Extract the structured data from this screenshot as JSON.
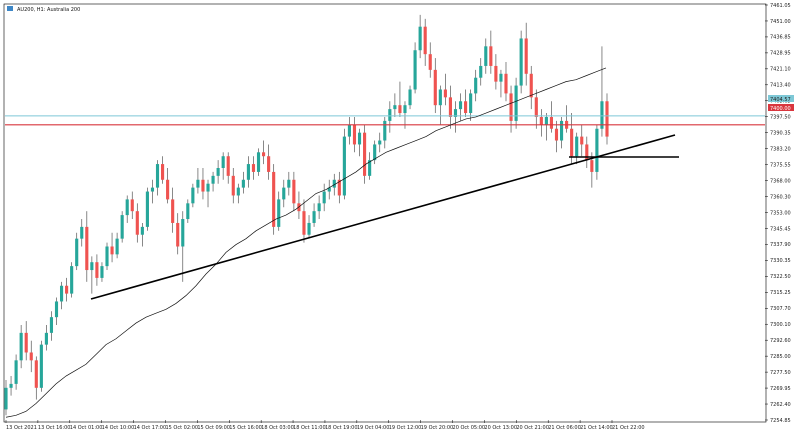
{
  "header": {
    "symbol_label": "AU200, H1:  Australia 200"
  },
  "colors": {
    "bull": "#26a69a",
    "bear": "#ef5350",
    "wick": "#555555",
    "cyan_line": "#7ec8d6",
    "red_line": "#d9363e",
    "trend": "#000000",
    "ma": "#111111",
    "grid_frame": "#000000"
  },
  "price_tags": {
    "current": "7404.57",
    "red_level": "7400.00"
  },
  "chart_data": {
    "type": "candlestick",
    "title": "",
    "ylim": [
      7249.6,
      7461.05
    ],
    "y_ticks": [
      "7461.05",
      "7451.00",
      "7436.85",
      "7428.95",
      "7421.10",
      "7413.40",
      "7405.65",
      "7397.50",
      "7390.35",
      "7383.20",
      "7375.55",
      "7368.00",
      "7360.30",
      "7353.00",
      "7345.45",
      "7337.90",
      "7330.35",
      "7322.50",
      "7315.25",
      "7307.70",
      "7300.10",
      "7292.60",
      "7285.00",
      "7277.50",
      "7269.95",
      "7262.40",
      "7254.85"
    ],
    "x_ticks": [
      "13 Oct 2021",
      "13 Oct 16:00",
      "14 Oct 01:00",
      "14 Oct 10:00",
      "14 Oct 17:00",
      "15 Oct 02:00",
      "15 Oct 09:00",
      "15 Oct 16:00",
      "18 Oct 03:00",
      "18 Oct 11:00",
      "18 Oct 19:00",
      "19 Oct 04:00",
      "19 Oct 12:00",
      "19 Oct 20:00",
      "20 Oct 05:00",
      "20 Oct 13:00",
      "20 Oct 21:00",
      "21 Oct 06:00",
      "21 Oct 14:00",
      "21 Oct 22:00"
    ],
    "candles": [
      [
        7255,
        7270,
        7252,
        7266
      ],
      [
        7266,
        7272,
        7262,
        7268
      ],
      [
        7268,
        7283,
        7265,
        7280
      ],
      [
        7280,
        7298,
        7276,
        7294
      ],
      [
        7294,
        7300,
        7280,
        7284
      ],
      [
        7284,
        7290,
        7274,
        7280
      ],
      [
        7280,
        7282,
        7260,
        7266
      ],
      [
        7266,
        7290,
        7264,
        7288
      ],
      [
        7288,
        7298,
        7285,
        7294
      ],
      [
        7294,
        7305,
        7290,
        7302
      ],
      [
        7302,
        7312,
        7298,
        7310
      ],
      [
        7310,
        7320,
        7306,
        7318
      ],
      [
        7318,
        7322,
        7310,
        7314
      ],
      [
        7314,
        7330,
        7312,
        7328
      ],
      [
        7328,
        7345,
        7326,
        7342
      ],
      [
        7342,
        7352,
        7338,
        7348
      ],
      [
        7348,
        7356,
        7320,
        7326
      ],
      [
        7326,
        7333,
        7314,
        7330
      ],
      [
        7330,
        7334,
        7318,
        7322
      ],
      [
        7322,
        7330,
        7320,
        7328
      ],
      [
        7328,
        7340,
        7326,
        7338
      ],
      [
        7338,
        7345,
        7330,
        7334
      ],
      [
        7334,
        7345,
        7332,
        7342
      ],
      [
        7342,
        7356,
        7340,
        7354
      ],
      [
        7354,
        7364,
        7350,
        7362
      ],
      [
        7362,
        7366,
        7352,
        7356
      ],
      [
        7356,
        7360,
        7340,
        7344
      ],
      [
        7344,
        7350,
        7338,
        7348
      ],
      [
        7348,
        7368,
        7346,
        7366
      ],
      [
        7366,
        7372,
        7360,
        7368
      ],
      [
        7368,
        7382,
        7364,
        7380
      ],
      [
        7380,
        7384,
        7370,
        7372
      ],
      [
        7372,
        7378,
        7360,
        7362
      ],
      [
        7362,
        7368,
        7345,
        7350
      ],
      [
        7350,
        7355,
        7334,
        7338
      ],
      [
        7338,
        7356,
        7320,
        7352
      ],
      [
        7352,
        7362,
        7350,
        7360
      ],
      [
        7360,
        7370,
        7358,
        7368
      ],
      [
        7368,
        7378,
        7365,
        7372
      ],
      [
        7372,
        7378,
        7362,
        7366
      ],
      [
        7366,
        7372,
        7358,
        7370
      ],
      [
        7370,
        7376,
        7366,
        7374
      ],
      [
        7374,
        7382,
        7370,
        7378
      ],
      [
        7378,
        7386,
        7372,
        7384
      ],
      [
        7384,
        7386,
        7370,
        7374
      ],
      [
        7374,
        7378,
        7360,
        7364
      ],
      [
        7364,
        7370,
        7360,
        7368
      ],
      [
        7368,
        7376,
        7365,
        7372
      ],
      [
        7372,
        7384,
        7368,
        7380
      ],
      [
        7380,
        7384,
        7372,
        7376
      ],
      [
        7376,
        7388,
        7374,
        7386
      ],
      [
        7386,
        7392,
        7380,
        7384
      ],
      [
        7384,
        7390,
        7372,
        7376
      ],
      [
        7376,
        7380,
        7344,
        7348
      ],
      [
        7348,
        7366,
        7346,
        7362
      ],
      [
        7362,
        7372,
        7358,
        7368
      ],
      [
        7368,
        7376,
        7364,
        7372
      ],
      [
        7372,
        7376,
        7356,
        7360
      ],
      [
        7360,
        7366,
        7352,
        7356
      ],
      [
        7356,
        7362,
        7340,
        7344
      ],
      [
        7344,
        7354,
        7342,
        7350
      ],
      [
        7350,
        7360,
        7348,
        7356
      ],
      [
        7356,
        7364,
        7352,
        7360
      ],
      [
        7360,
        7370,
        7356,
        7366
      ],
      [
        7366,
        7372,
        7362,
        7368
      ],
      [
        7368,
        7375,
        7364,
        7372
      ],
      [
        7372,
        7376,
        7360,
        7364
      ],
      [
        7364,
        7398,
        7362,
        7394
      ],
      [
        7394,
        7404,
        7390,
        7400
      ],
      [
        7400,
        7404,
        7386,
        7390
      ],
      [
        7390,
        7398,
        7384,
        7396
      ],
      [
        7396,
        7400,
        7370,
        7374
      ],
      [
        7374,
        7386,
        7372,
        7382
      ],
      [
        7382,
        7392,
        7380,
        7390
      ],
      [
        7390,
        7396,
        7386,
        7392
      ],
      [
        7392,
        7404,
        7388,
        7402
      ],
      [
        7402,
        7412,
        7396,
        7408
      ],
      [
        7408,
        7416,
        7404,
        7410
      ],
      [
        7410,
        7422,
        7404,
        7406
      ],
      [
        7406,
        7412,
        7398,
        7410
      ],
      [
        7410,
        7420,
        7408,
        7418
      ],
      [
        7418,
        7442,
        7416,
        7438
      ],
      [
        7438,
        7456,
        7434,
        7450
      ],
      [
        7450,
        7454,
        7430,
        7436
      ],
      [
        7436,
        7442,
        7424,
        7428
      ],
      [
        7428,
        7434,
        7406,
        7410
      ],
      [
        7410,
        7420,
        7400,
        7418
      ],
      [
        7418,
        7426,
        7410,
        7414
      ],
      [
        7414,
        7420,
        7398,
        7404
      ],
      [
        7404,
        7412,
        7396,
        7408
      ],
      [
        7408,
        7416,
        7402,
        7412
      ],
      [
        7412,
        7418,
        7404,
        7406
      ],
      [
        7406,
        7418,
        7402,
        7416
      ],
      [
        7416,
        7428,
        7412,
        7424
      ],
      [
        7424,
        7434,
        7420,
        7430
      ],
      [
        7430,
        7444,
        7426,
        7440
      ],
      [
        7440,
        7448,
        7426,
        7430
      ],
      [
        7430,
        7436,
        7418,
        7422
      ],
      [
        7422,
        7428,
        7414,
        7426
      ],
      [
        7426,
        7432,
        7412,
        7416
      ],
      [
        7416,
        7420,
        7396,
        7402
      ],
      [
        7402,
        7424,
        7398,
        7420
      ],
      [
        7420,
        7448,
        7416,
        7444
      ],
      [
        7444,
        7452,
        7420,
        7426
      ],
      [
        7426,
        7430,
        7408,
        7414
      ],
      [
        7414,
        7418,
        7398,
        7404
      ],
      [
        7404,
        7408,
        7394,
        7400
      ],
      [
        7400,
        7406,
        7392,
        7404
      ],
      [
        7404,
        7412,
        7396,
        7398
      ],
      [
        7398,
        7402,
        7386,
        7392
      ],
      [
        7392,
        7404,
        7388,
        7402
      ],
      [
        7402,
        7410,
        7396,
        7398
      ],
      [
        7398,
        7406,
        7380,
        7384
      ],
      [
        7384,
        7396,
        7380,
        7394
      ],
      [
        7394,
        7400,
        7384,
        7390
      ],
      [
        7390,
        7394,
        7378,
        7382
      ],
      [
        7382,
        7386,
        7368,
        7376
      ],
      [
        7376,
        7400,
        7372,
        7398
      ],
      [
        7398,
        7440,
        7394,
        7412
      ],
      [
        7412,
        7416,
        7390,
        7394
      ]
    ],
    "ma": [
      [
        0,
        7251
      ],
      [
        10,
        7252
      ],
      [
        20,
        7254
      ],
      [
        30,
        7258
      ],
      [
        40,
        7263
      ],
      [
        50,
        7268
      ],
      [
        60,
        7272
      ],
      [
        70,
        7275
      ],
      [
        80,
        7278
      ],
      [
        90,
        7283
      ],
      [
        100,
        7288
      ],
      [
        110,
        7291
      ],
      [
        120,
        7295
      ],
      [
        130,
        7299
      ],
      [
        140,
        7302
      ],
      [
        150,
        7304
      ],
      [
        160,
        7306
      ],
      [
        170,
        7309
      ],
      [
        180,
        7313
      ],
      [
        190,
        7318
      ],
      [
        200,
        7324
      ],
      [
        210,
        7329
      ],
      [
        220,
        7335
      ],
      [
        230,
        7339
      ],
      [
        240,
        7342
      ],
      [
        250,
        7346
      ],
      [
        260,
        7349
      ],
      [
        270,
        7352
      ],
      [
        280,
        7354
      ],
      [
        290,
        7357
      ],
      [
        300,
        7361
      ],
      [
        310,
        7365
      ],
      [
        320,
        7367
      ],
      [
        330,
        7370
      ],
      [
        340,
        7373
      ],
      [
        350,
        7376
      ],
      [
        360,
        7380
      ],
      [
        370,
        7383
      ],
      [
        380,
        7386
      ],
      [
        390,
        7388
      ],
      [
        400,
        7390
      ],
      [
        410,
        7392
      ],
      [
        420,
        7394
      ],
      [
        430,
        7397
      ],
      [
        440,
        7399
      ],
      [
        450,
        7401
      ],
      [
        460,
        7403
      ],
      [
        470,
        7404
      ],
      [
        480,
        7406
      ],
      [
        490,
        7408
      ],
      [
        500,
        7410
      ],
      [
        510,
        7412
      ],
      [
        520,
        7414
      ],
      [
        530,
        7416
      ],
      [
        540,
        7418
      ],
      [
        550,
        7420
      ],
      [
        560,
        7422
      ],
      [
        570,
        7423
      ],
      [
        580,
        7425
      ],
      [
        590,
        7427
      ],
      [
        600,
        7429
      ]
    ],
    "hlines": [
      7404.57,
      7400.0
    ]
  }
}
